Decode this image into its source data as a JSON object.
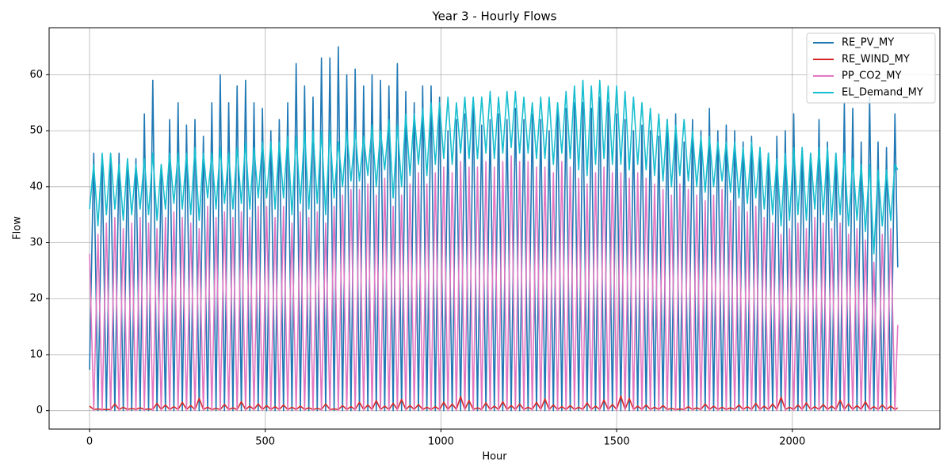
{
  "chart_data": {
    "type": "line",
    "title": "Year 3 - Hourly Flows",
    "x_label": "Hour",
    "y_label": "Flow",
    "x": [
      0,
      12,
      24,
      36,
      48,
      60,
      72,
      84,
      96,
      108,
      120,
      132,
      144,
      156,
      168,
      180,
      192,
      204,
      216,
      228,
      240,
      252,
      264,
      276,
      288,
      300,
      312,
      324,
      336,
      348,
      360,
      372,
      384,
      396,
      408,
      420,
      432,
      444,
      456,
      468,
      480,
      492,
      504,
      516,
      528,
      540,
      552,
      564,
      576,
      588,
      600,
      612,
      624,
      636,
      648,
      660,
      672,
      684,
      696,
      708,
      720,
      732,
      744,
      756,
      768,
      780,
      792,
      804,
      816,
      828,
      840,
      852,
      864,
      876,
      888,
      900,
      912,
      924,
      936,
      948,
      960,
      972,
      984,
      996,
      1008,
      1020,
      1032,
      1044,
      1056,
      1068,
      1080,
      1092,
      1104,
      1116,
      1128,
      1140,
      1152,
      1164,
      1176,
      1188,
      1200,
      1212,
      1224,
      1236,
      1248,
      1260,
      1272,
      1284,
      1296,
      1308,
      1320,
      1332,
      1344,
      1356,
      1368,
      1380,
      1392,
      1404,
      1416,
      1428,
      1440,
      1452,
      1464,
      1476,
      1488,
      1500,
      1512,
      1524,
      1536,
      1548,
      1560,
      1572,
      1584,
      1596,
      1608,
      1620,
      1632,
      1644,
      1656,
      1668,
      1680,
      1692,
      1704,
      1716,
      1728,
      1740,
      1752,
      1764,
      1776,
      1788,
      1800,
      1812,
      1824,
      1836,
      1848,
      1860,
      1872,
      1884,
      1896,
      1908,
      1920,
      1932,
      1944,
      1956,
      1968,
      1980,
      1992,
      2004,
      2016,
      2028,
      2040,
      2052,
      2064,
      2076,
      2088,
      2100,
      2112,
      2124,
      2136,
      2148,
      2160,
      2172,
      2184,
      2196,
      2208,
      2220,
      2232,
      2244,
      2256,
      2268,
      2280,
      2292,
      2300
    ],
    "series": [
      {
        "name": "RE_PV_MY",
        "color": "#1f77b4",
        "values": [
          7.3,
          46,
          0,
          44,
          0,
          45,
          0,
          46,
          0,
          44,
          0,
          45,
          0,
          53,
          0,
          59,
          0,
          43,
          0,
          52,
          0,
          55,
          0,
          51,
          0,
          52,
          0,
          49,
          0,
          55,
          0,
          60,
          0,
          55,
          0,
          58,
          0,
          59,
          0,
          55,
          0,
          54,
          0,
          50,
          0,
          52,
          0,
          55,
          0,
          62,
          0,
          58,
          0,
          56,
          0,
          63,
          0,
          63,
          0,
          65,
          0,
          60,
          0,
          61,
          0,
          58,
          0,
          60,
          0,
          59,
          0,
          58,
          0,
          62,
          0,
          57,
          0,
          55,
          0,
          58,
          0,
          58,
          0,
          56,
          0,
          50,
          0,
          52,
          0,
          53,
          0,
          55,
          0,
          51,
          0,
          52,
          0,
          53,
          0,
          52,
          0,
          54,
          0,
          52,
          0,
          53,
          0,
          52,
          0,
          50,
          0,
          54,
          0,
          54,
          0,
          55,
          0,
          55,
          0,
          54,
          0,
          56,
          0,
          55,
          0,
          53,
          0,
          52,
          0,
          50,
          0,
          51,
          0,
          50,
          0,
          49,
          0,
          52,
          0,
          53,
          0,
          48,
          0,
          52,
          0,
          50,
          0,
          54,
          0,
          50,
          0,
          51,
          0,
          50,
          0,
          48,
          0,
          49,
          0,
          47,
          0,
          46,
          0,
          49,
          0,
          50,
          0,
          53,
          0,
          47,
          0,
          46,
          0,
          52,
          0,
          48,
          0,
          46,
          0,
          55,
          0,
          54,
          0,
          48,
          0,
          56,
          0,
          48,
          0,
          47,
          0,
          53,
          25.6
        ]
      },
      {
        "name": "RE_WIND_MY",
        "color": "#d62728",
        "values": [
          0.8,
          0.2,
          0.3,
          0.2,
          0.2,
          0.2,
          1.2,
          0.2,
          0.6,
          0.2,
          0.4,
          0.2,
          0.5,
          0.2,
          0.3,
          0.2,
          1.3,
          0.2,
          1.0,
          0.2,
          0.7,
          0.2,
          1.5,
          0.2,
          0.9,
          0.2,
          2.2,
          0.2,
          0.6,
          0.2,
          0.4,
          0.2,
          1.1,
          0.2,
          0.5,
          0.2,
          1.6,
          0.2,
          0.8,
          0.2,
          1.2,
          0.2,
          0.9,
          0.2,
          0.7,
          0.2,
          1.0,
          0.2,
          0.6,
          0.2,
          0.8,
          0.2,
          0.5,
          0.2,
          0.4,
          0.2,
          1.2,
          0.2,
          0.3,
          0.2,
          0.9,
          0.2,
          0.7,
          0.2,
          1.5,
          0.2,
          1.0,
          0.2,
          1.8,
          0.2,
          0.8,
          0.2,
          1.3,
          0.2,
          2.0,
          0.2,
          0.9,
          0.2,
          1.1,
          0.2,
          0.6,
          0.2,
          0.7,
          0.2,
          1.5,
          0.2,
          1.2,
          0.2,
          2.5,
          0.2,
          1.8,
          0.2,
          0.5,
          0.2,
          1.4,
          0.2,
          0.8,
          0.2,
          1.6,
          0.2,
          0.9,
          0.2,
          1.2,
          0.2,
          0.6,
          0.2,
          1.5,
          0.2,
          2.1,
          0.2,
          1.0,
          0.2,
          0.7,
          0.2,
          0.9,
          0.2,
          0.6,
          0.2,
          1.4,
          0.2,
          0.8,
          0.2,
          1.9,
          0.2,
          1.1,
          0.2,
          2.6,
          0.2,
          2.2,
          0.2,
          0.8,
          0.2,
          1.0,
          0.2,
          0.6,
          0.2,
          0.9,
          0.2,
          0.4,
          0.2,
          0.3,
          0.2,
          0.7,
          0.2,
          0.5,
          0.2,
          1.2,
          0.2,
          0.8,
          0.2,
          0.6,
          0.2,
          0.5,
          0.2,
          1.0,
          0.2,
          0.7,
          0.2,
          1.3,
          0.2,
          0.8,
          0.2,
          1.2,
          0.2,
          2.4,
          0.2,
          0.6,
          0.2,
          1.0,
          0.2,
          1.4,
          0.2,
          0.7,
          0.2,
          1.1,
          0.2,
          0.8,
          0.2,
          1.9,
          0.2,
          1.2,
          0.2,
          0.9,
          0.2,
          1.6,
          0.2,
          0.7,
          0.2,
          1.0,
          0.2,
          0.8,
          0.2,
          0.5
        ]
      },
      {
        "name": "PP_CO2_MY",
        "color": "#e377c2",
        "values": [
          28,
          0,
          31.5,
          0,
          33.5,
          0,
          34.5,
          0,
          32.5,
          0,
          33.5,
          0,
          34.5,
          0,
          33.5,
          0,
          32.5,
          0,
          34.5,
          0,
          35.5,
          0,
          34.5,
          0,
          33.5,
          0,
          32.5,
          0,
          36.5,
          0,
          34.5,
          0,
          35.5,
          0,
          34.5,
          0,
          35.5,
          0,
          34.5,
          0,
          36.5,
          0,
          36.5,
          0,
          34.5,
          0,
          36.5,
          0,
          33.5,
          0,
          35.5,
          0,
          34.5,
          0,
          35.5,
          0,
          33.5,
          0,
          36.5,
          0,
          38.5,
          0,
          39.5,
          0,
          39.5,
          0,
          40.5,
          0,
          38.5,
          0,
          41.5,
          0,
          36.5,
          0,
          38.5,
          0,
          40.5,
          0,
          42.5,
          0,
          40.5,
          0,
          42.5,
          0,
          43.5,
          0,
          42.5,
          0,
          44.5,
          0,
          43.5,
          0,
          43.5,
          0,
          44.5,
          0,
          43.5,
          0,
          44.5,
          0,
          45.5,
          0,
          44.5,
          0,
          44.5,
          0,
          43.5,
          0,
          43.5,
          0,
          42.5,
          0,
          44.5,
          0,
          43.5,
          0,
          41.5,
          0,
          40.5,
          0,
          42.5,
          0,
          43.5,
          0,
          42.5,
          0,
          42.5,
          0,
          41.5,
          0,
          42.5,
          0,
          41.5,
          0,
          40.5,
          0,
          39.5,
          0,
          38.5,
          0,
          40.5,
          0,
          39.5,
          0,
          38.5,
          0,
          37.5,
          0,
          38.5,
          0,
          39.5,
          0,
          37.5,
          0,
          36.5,
          0,
          35.5,
          0,
          36.5,
          0,
          34.5,
          0,
          33.5,
          0,
          31.5,
          0,
          32.5,
          0,
          33.5,
          0,
          32.5,
          0,
          34.5,
          0,
          33.5,
          0,
          32.5,
          0,
          33.5,
          0,
          31.5,
          0,
          32.5,
          0,
          30.5,
          0,
          26.5,
          0,
          31.5,
          0,
          32.5,
          0,
          15.3
        ]
      },
      {
        "name": "EL_Demand_MY",
        "color": "#17becf",
        "values": [
          36,
          44,
          33,
          46,
          35,
          46,
          36,
          44,
          34,
          45,
          35,
          44,
          36,
          45,
          35,
          46,
          34,
          44,
          36,
          46,
          37,
          46,
          36,
          46,
          35,
          47,
          34,
          46,
          38,
          46,
          36,
          47,
          37,
          46,
          36,
          47,
          37,
          48,
          36,
          47,
          38,
          48,
          38,
          48,
          36,
          48,
          38,
          49,
          35,
          49,
          37,
          50,
          36,
          50,
          37,
          50,
          35,
          50,
          38,
          48,
          40,
          50,
          41,
          50,
          41,
          49,
          42,
          51,
          40,
          50,
          43,
          52,
          38,
          51,
          40,
          53,
          42,
          53,
          44,
          54,
          42,
          55,
          44,
          55,
          45,
          56,
          44,
          55,
          46,
          56,
          45,
          56,
          45,
          56,
          46,
          57,
          45,
          56,
          46,
          57,
          47,
          57,
          46,
          56,
          46,
          55,
          45,
          56,
          45,
          56,
          44,
          55,
          46,
          57,
          45,
          58,
          43,
          59,
          42,
          58,
          44,
          59,
          45,
          58,
          44,
          58,
          44,
          57,
          43,
          56,
          44,
          55,
          43,
          54,
          42,
          53,
          41,
          52,
          40,
          51,
          42,
          52,
          41,
          50,
          40,
          49,
          39,
          49,
          40,
          48,
          41,
          48,
          39,
          48,
          38,
          47,
          37,
          48,
          38,
          47,
          36,
          46,
          35,
          45,
          33,
          46,
          34,
          47,
          35,
          47,
          34,
          46,
          36,
          47,
          35,
          47,
          34,
          46,
          35,
          46,
          33,
          45,
          34,
          44,
          32,
          44,
          28,
          43,
          33,
          43,
          34,
          44,
          43
        ]
      }
    ],
    "xlim": [
      -115,
      2420
    ],
    "xticks": [
      0,
      500,
      1000,
      1500,
      2000
    ],
    "ylim": [
      -3.3,
      68.4
    ],
    "yticks": [
      0,
      10,
      20,
      30,
      40,
      50,
      60
    ],
    "grid": true,
    "legend": "upper right"
  }
}
